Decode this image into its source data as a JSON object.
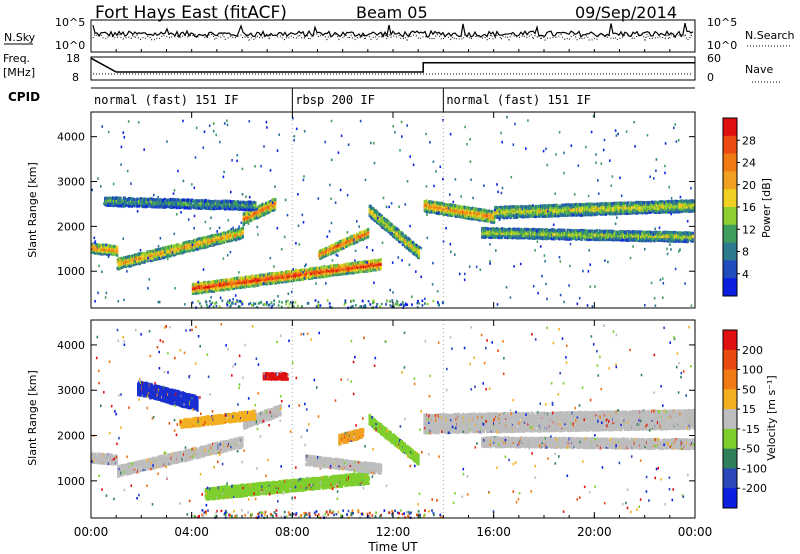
{
  "header": {
    "title": "Fort Hays East (fitACF)",
    "beam": "Beam 05",
    "date": "09/Sep/2014"
  },
  "status_panels": {
    "nsky_label": "N.Sky",
    "nsky_ticks": [
      "10^5",
      "10^0"
    ],
    "nsearch_label": "N.Search",
    "nsearch_ticks": [
      "10^5",
      "10^0"
    ],
    "freq_label_1": "Freq.",
    "freq_label_2": "[MHz]",
    "freq_ticks": [
      "18",
      "8"
    ],
    "nave_label": "Nave",
    "nave_ticks": [
      "60",
      "0"
    ],
    "cpid_label": "CPID",
    "freq_steps": [
      {
        "t": 0,
        "mhz": 17.5
      },
      {
        "t": 1.0,
        "mhz": 11.5
      },
      {
        "t": 13.2,
        "mhz": 11.5
      },
      {
        "t": 13.2,
        "mhz": 15.5
      },
      {
        "t": 24,
        "mhz": 15.5
      }
    ],
    "cpid_segments": [
      {
        "start": 0,
        "end": 8.0,
        "label": "normal (fast) 151 IF"
      },
      {
        "start": 8.0,
        "end": 14.0,
        "label": "rbsp 200 IF"
      },
      {
        "start": 14.0,
        "end": 24,
        "label": "normal (fast) 151 IF"
      }
    ]
  },
  "chart_data": [
    {
      "type": "heatmap",
      "name": "power",
      "ylabel": "Slant Range [km]",
      "yticks": [
        "1000",
        "2000",
        "3000",
        "4000"
      ],
      "ylim": [
        180,
        4550
      ],
      "xlim": [
        0,
        24
      ],
      "colorbar": {
        "label": "Power [dB]",
        "ticks": [
          "4",
          "8",
          "12",
          "16",
          "20",
          "24",
          "28"
        ],
        "colors": [
          "#0a1fe0",
          "#1f4dbd",
          "#2c7a8e",
          "#3f9e5e",
          "#8ccf2e",
          "#f0d022",
          "#f0a020",
          "#f07a14",
          "#ec4a10",
          "#e01010"
        ]
      },
      "features": [
        {
          "t0": 0.0,
          "t1": 1.0,
          "r0": 1550,
          "r1": 1500,
          "w": 220,
          "v": 0.75
        },
        {
          "t0": 1.0,
          "t1": 6.0,
          "r0": 1200,
          "r1": 1900,
          "w": 240,
          "v": 0.7
        },
        {
          "t0": 6.0,
          "t1": 7.3,
          "r0": 2200,
          "r1": 2550,
          "w": 260,
          "v": 0.8
        },
        {
          "t0": 4.0,
          "t1": 11.5,
          "r0": 650,
          "r1": 1200,
          "w": 240,
          "v": 0.95
        },
        {
          "t0": 9.0,
          "t1": 11.0,
          "r0": 1400,
          "r1": 1900,
          "w": 200,
          "v": 0.85
        },
        {
          "t0": 11.0,
          "t1": 13.0,
          "r0": 2400,
          "r1": 1450,
          "w": 260,
          "v": 0.6
        },
        {
          "t0": 13.2,
          "t1": 16.0,
          "r0": 2500,
          "r1": 2250,
          "w": 260,
          "v": 0.75
        },
        {
          "t0": 16.0,
          "t1": 24.0,
          "r0": 2350,
          "r1": 2500,
          "w": 260,
          "v": 0.55
        },
        {
          "t0": 15.5,
          "t1": 24.0,
          "r0": 1900,
          "r1": 1800,
          "w": 220,
          "v": 0.5
        },
        {
          "t0": 0.5,
          "t1": 6.5,
          "r0": 2600,
          "r1": 2500,
          "w": 200,
          "v": 0.35
        }
      ]
    },
    {
      "type": "heatmap",
      "name": "velocity",
      "ylabel": "Slant Range [km]",
      "yticks": [
        "1000",
        "2000",
        "3000",
        "4000"
      ],
      "ylim": [
        180,
        4550
      ],
      "xlim": [
        0,
        24
      ],
      "xlabel": "Time UT",
      "xticks": [
        "00:00",
        "04:00",
        "08:00",
        "12:00",
        "16:00",
        "20:00",
        "00:00"
      ],
      "colorbar": {
        "label": "Velocity [m s⁻¹]",
        "ticks": [
          "200",
          "100",
          "50",
          "15",
          "-15",
          "-50",
          "-100",
          "-200"
        ],
        "colors": [
          "#0a1fe0",
          "#2a48b8",
          "#2e7f5a",
          "#7ecf2e",
          "#bdbdbd",
          "#f2b020",
          "#f07a14",
          "#e84a10",
          "#e01010"
        ]
      },
      "features": [
        {
          "t0": 0.0,
          "t1": 1.0,
          "r0": 1550,
          "r1": 1500,
          "w": 220,
          "c": "#bdbdbd"
        },
        {
          "t0": 1.0,
          "t1": 6.0,
          "r0": 1250,
          "r1": 1900,
          "w": 240,
          "c": "#bdbdbd"
        },
        {
          "t0": 1.8,
          "t1": 4.2,
          "r0": 3100,
          "r1": 2750,
          "w": 320,
          "c": "#1a2fd0"
        },
        {
          "t0": 6.0,
          "t1": 7.5,
          "r0": 2300,
          "r1": 2600,
          "w": 240,
          "c": "#bdbdbd"
        },
        {
          "t0": 4.5,
          "t1": 11.0,
          "r0": 750,
          "r1": 1100,
          "w": 260,
          "c": "#7ecf2e"
        },
        {
          "t0": 8.5,
          "t1": 11.5,
          "r0": 1500,
          "r1": 1300,
          "w": 220,
          "c": "#bdbdbd"
        },
        {
          "t0": 9.8,
          "t1": 10.8,
          "r0": 1950,
          "r1": 2100,
          "w": 220,
          "c": "#f2a020"
        },
        {
          "t0": 11.0,
          "t1": 13.0,
          "r0": 2400,
          "r1": 1500,
          "w": 220,
          "c": "#7ecf2e"
        },
        {
          "t0": 13.2,
          "t1": 24.0,
          "r0": 2300,
          "r1": 2400,
          "w": 420,
          "c": "#bdbdbd"
        },
        {
          "t0": 15.5,
          "t1": 24.0,
          "r0": 1900,
          "r1": 1850,
          "w": 220,
          "c": "#bdbdbd"
        },
        {
          "t0": 3.5,
          "t1": 6.5,
          "r0": 2300,
          "r1": 2500,
          "w": 200,
          "c": "#f2b020"
        },
        {
          "t0": 6.8,
          "t1": 7.8,
          "r0": 3350,
          "r1": 3350,
          "w": 150,
          "c": "#e01010"
        }
      ]
    }
  ]
}
